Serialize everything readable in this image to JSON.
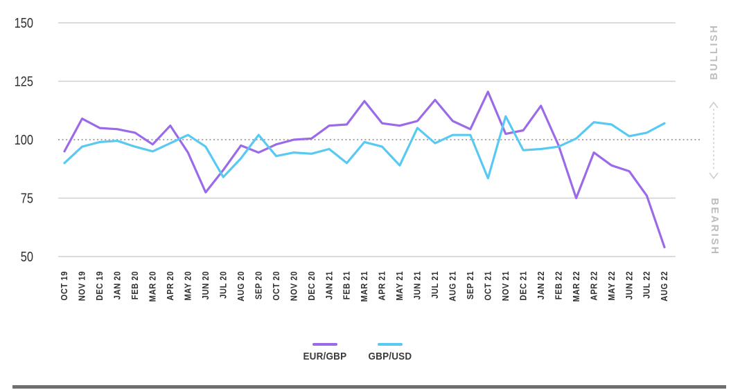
{
  "chart_data": {
    "type": "line",
    "title": "",
    "xlabel": "",
    "ylabel": "",
    "categories": [
      "OCT 19",
      "NOV 19",
      "DEC 19",
      "JAN 20",
      "FEB 20",
      "MAR 20",
      "APR 20",
      "MAY 20",
      "JUN 20",
      "JUL 20",
      "AUG 20",
      "SEP 20",
      "OCT 20",
      "NOV 20",
      "DEC 20",
      "JAN 21",
      "FEB 21",
      "MAR 21",
      "APR 21",
      "MAY 21",
      "JUN 21",
      "JUL 21",
      "AUG 21",
      "SEP 21",
      "OCT 21",
      "NOV 21",
      "DEC 21",
      "JAN 22",
      "FEB 22",
      "MAR 22",
      "APR 22",
      "MAY 22",
      "JUN 22",
      "JUL 22",
      "AUG 22"
    ],
    "series": [
      {
        "name": "EUR/GBP",
        "color": "#9b6ae8",
        "values": [
          95,
          109,
          105,
          104.5,
          103,
          98,
          106,
          94.5,
          77.5,
          87,
          97.5,
          94.5,
          98,
          100,
          100.5,
          106,
          106.5,
          116.5,
          107,
          106,
          108,
          117,
          108,
          104.5,
          120.5,
          102.5,
          104,
          114.5,
          97.5,
          75,
          94.5,
          89,
          86.5,
          76,
          54
        ]
      },
      {
        "name": "GBP/USD",
        "color": "#57c9f2",
        "values": [
          90,
          97,
          99,
          99.5,
          97,
          95,
          98.5,
          102,
          97,
          84,
          92,
          102,
          93,
          94.5,
          94,
          96,
          90,
          99,
          97,
          89,
          105,
          98.5,
          102,
          102,
          83.5,
          110,
          95.5,
          96,
          97,
          100.5,
          107.5,
          106.5,
          101.5,
          103,
          107
        ]
      }
    ],
    "ylim": [
      50,
      150
    ],
    "yticks": [
      150,
      125,
      100,
      75,
      50
    ],
    "baseline": {
      "value": 100,
      "style": "dotted"
    },
    "grid": "horizontal solid lines at yticks, dotted at 100",
    "legend_position": "bottom-center",
    "right_labels": {
      "top": "BULLISH",
      "bottom": "BEARISH"
    }
  },
  "colors": {
    "eur_gbp": "#9b6ae8",
    "gbp_usd": "#57c9f2",
    "grid": "#cfcfcf",
    "side_labels": "#bcbcbc"
  }
}
